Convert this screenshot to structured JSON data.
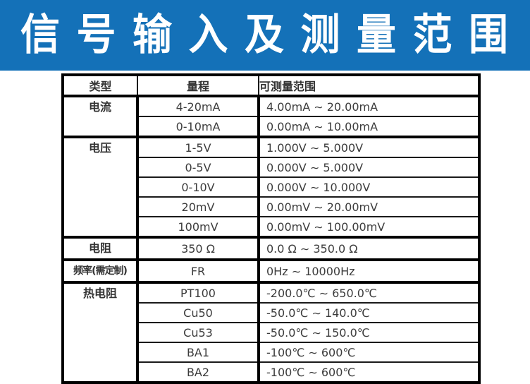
{
  "banner": {
    "title": "信 号 输 入 及 测 量 范 围",
    "bg_color": "#1471b8",
    "text_color": "#ffffff"
  },
  "table": {
    "columns": {
      "type": "类型",
      "range": "量程",
      "measurable": "可测量范围"
    },
    "groups": [
      {
        "type": "电流",
        "rows": [
          {
            "range": "4-20mA",
            "meas": "4.00mA ∼ 20.00mA"
          },
          {
            "range": "0-10mA",
            "meas": "0.00mA ∼ 10.00mA"
          }
        ]
      },
      {
        "type": "电压",
        "rows": [
          {
            "range": "1-5V",
            "meas": "1.000V ∼ 5.000V"
          },
          {
            "range": "0-5V",
            "meas": "0.000V ∼ 5.000V"
          },
          {
            "range": "0-10V",
            "meas": "0.000V ∼ 10.000V"
          },
          {
            "range": "20mV",
            "meas": "0.00mV ∼ 20.00mV"
          },
          {
            "range": "100mV",
            "meas": "0.00mV ∼ 100.00mV"
          }
        ]
      },
      {
        "type": "电阻",
        "rows": [
          {
            "range": "350 Ω",
            "meas": "0.0 Ω ∼ 350.0 Ω"
          }
        ]
      },
      {
        "type": "频率(需定制)",
        "rows": [
          {
            "range": "FR",
            "meas": "0Hz ∼ 10000Hz"
          }
        ]
      },
      {
        "type": "热电阻",
        "rows": [
          {
            "range": "PT100",
            "meas": "-200.0℃ ∼ 650.0℃"
          },
          {
            "range": "Cu50",
            "meas": "-50.0℃ ∼ 140.0℃"
          },
          {
            "range": "Cu53",
            "meas": "-50.0℃ ∼ 150.0℃"
          },
          {
            "range": "BA1",
            "meas": "-100℃ ∼ 600℃"
          },
          {
            "range": "BA2",
            "meas": "-100℃ ∼ 600℃"
          }
        ]
      }
    ]
  }
}
